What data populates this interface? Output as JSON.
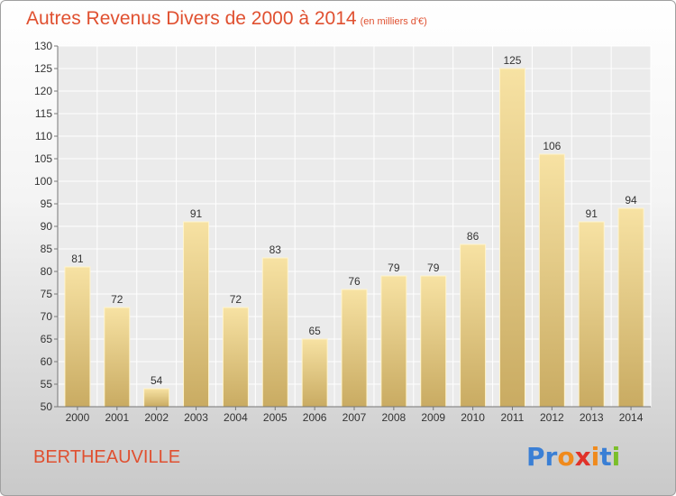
{
  "header": {
    "title": "Autres Revenus Divers de 2000 à 2014",
    "subtitle": "(en milliers d'€)"
  },
  "footer": {
    "town": "BERTHEAUVILLE",
    "brand_letters": [
      "P",
      "r",
      "o",
      "x",
      "i",
      "t",
      "i"
    ],
    "brand_colors": [
      "#3a7fd5",
      "#3a7fd5",
      "#f08a1c",
      "#e0322a",
      "#f08a1c",
      "#3a7fd5",
      "#7bbf2a"
    ]
  },
  "colors": {
    "title": "#e05030",
    "bar_light": "#f7e2a3",
    "bar_dark": "#c9ab62"
  },
  "chart_data": {
    "type": "bar",
    "categories": [
      "2000",
      "2001",
      "2002",
      "2003",
      "2004",
      "2005",
      "2006",
      "2007",
      "2008",
      "2009",
      "2010",
      "2011",
      "2012",
      "2013",
      "2014"
    ],
    "values": [
      81,
      72,
      54,
      91,
      72,
      83,
      65,
      76,
      79,
      79,
      86,
      125,
      106,
      91,
      94
    ],
    "title": "Autres Revenus Divers de 2000 à 2014",
    "xlabel": "",
    "ylabel": "",
    "ylim": [
      50,
      130
    ],
    "yticks": [
      50,
      55,
      60,
      65,
      70,
      75,
      80,
      85,
      90,
      95,
      100,
      105,
      110,
      115,
      120,
      125,
      130
    ],
    "grid": true,
    "data_labels": true
  }
}
